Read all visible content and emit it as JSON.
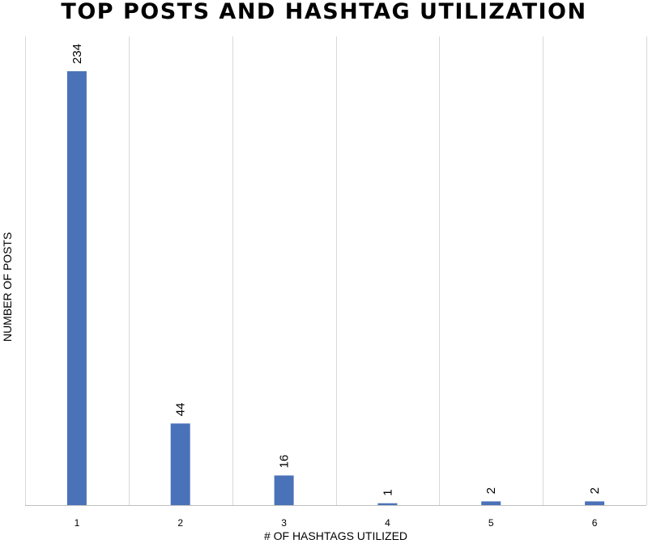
{
  "chart_data": {
    "type": "bar",
    "title": "TOP POSTS AND HASHTAG UTILIZATION",
    "xlabel": "# OF HASHTAGS UTILIZED",
    "ylabel": "NUMBER OF POSTS",
    "categories": [
      "1",
      "2",
      "3",
      "4",
      "5",
      "6"
    ],
    "series": [
      {
        "values": [
          234,
          44,
          16,
          1,
          2,
          2
        ]
      }
    ],
    "data_labels": [
      "234",
      "44",
      "16",
      "1",
      "2",
      "2"
    ],
    "ylim": [
      0,
      250
    ],
    "grid": "vertical category separators",
    "legend": "none",
    "bar_color": "#4a72b9",
    "grid_color": "#d9d9d9",
    "axis_color": "#bfbfbf"
  }
}
